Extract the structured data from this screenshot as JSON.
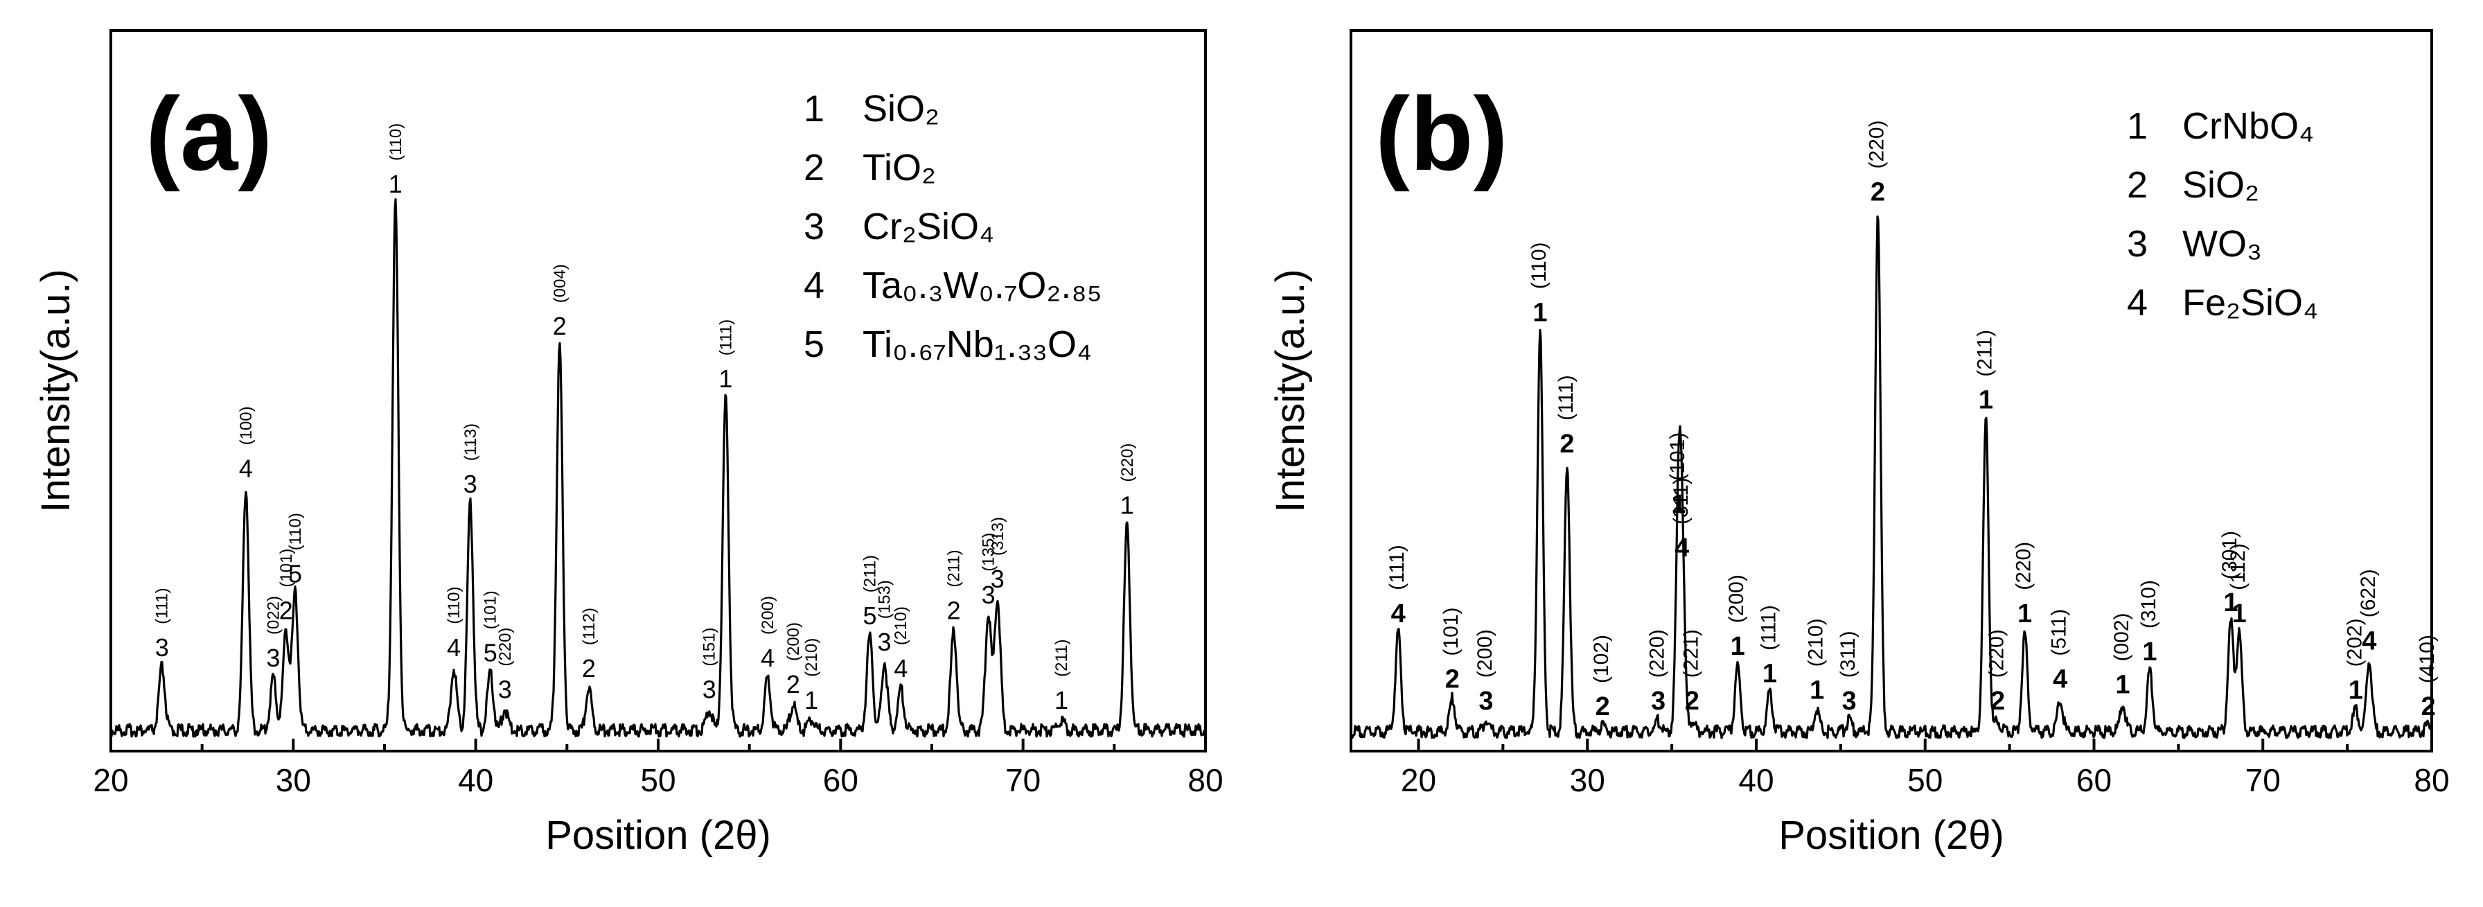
{
  "chart_data": [
    {
      "type": "line",
      "panel_label": "(a)",
      "xlabel": "Position (2θ)",
      "ylabel": "Intensity(a.u.)",
      "xlim": [
        20,
        80
      ],
      "ylim": [
        0,
        1
      ],
      "xticks": [
        20,
        30,
        40,
        50,
        60,
        70,
        80
      ],
      "xtick_labels": [
        "20",
        "30",
        "40",
        "50",
        "60",
        "70",
        "80"
      ],
      "legend": [
        {
          "num": "1",
          "phase": "SiO₂"
        },
        {
          "num": "2",
          "phase": "TiO₂"
        },
        {
          "num": "3",
          "phase": "Cr₂SiO₄"
        },
        {
          "num": "4",
          "phase": "Ta₀.₃W₀.₇O₂.₈₅"
        },
        {
          "num": "5",
          "phase": "Ti₀.₆₇Nb₁.₃₃O₄"
        }
      ],
      "peaks": [
        {
          "x": 22.8,
          "y": 0.12,
          "label": "3",
          "hkl": "(111)"
        },
        {
          "x": 27.4,
          "y": 0.46,
          "label": "4",
          "hkl": "(100)"
        },
        {
          "x": 28.9,
          "y": 0.1,
          "label": "3",
          "hkl": "(022)"
        },
        {
          "x": 29.6,
          "y": 0.19,
          "label": "2",
          "hkl": "(101)"
        },
        {
          "x": 30.1,
          "y": 0.26,
          "label": "5",
          "hkl": "(110)"
        },
        {
          "x": 35.6,
          "y": 1.0,
          "label": "1",
          "hkl": "(110)"
        },
        {
          "x": 38.8,
          "y": 0.12,
          "label": "4",
          "hkl": "(110)"
        },
        {
          "x": 39.7,
          "y": 0.43,
          "label": "3",
          "hkl": "(113)"
        },
        {
          "x": 40.8,
          "y": 0.11,
          "label": "5",
          "hkl": "(101)"
        },
        {
          "x": 41.6,
          "y": 0.04,
          "label": "3",
          "hkl": "(220)"
        },
        {
          "x": 44.6,
          "y": 0.73,
          "label": "2",
          "hkl": "(004)"
        },
        {
          "x": 46.2,
          "y": 0.08,
          "label": "2",
          "hkl": "(112)"
        },
        {
          "x": 52.8,
          "y": 0.04,
          "label": "3",
          "hkl": "(151)"
        },
        {
          "x": 53.7,
          "y": 0.63,
          "label": "1",
          "hkl": "(111)"
        },
        {
          "x": 56.0,
          "y": 0.1,
          "label": "4",
          "hkl": "(200)"
        },
        {
          "x": 57.4,
          "y": 0.05,
          "label": "2",
          "hkl": "(200)"
        },
        {
          "x": 58.4,
          "y": 0.02,
          "label": "1",
          "hkl": "(210)"
        },
        {
          "x": 61.6,
          "y": 0.18,
          "label": "5",
          "hkl": "(211)"
        },
        {
          "x": 62.4,
          "y": 0.13,
          "label": "3",
          "hkl": "(153)"
        },
        {
          "x": 63.3,
          "y": 0.08,
          "label": "4",
          "hkl": "(210)"
        },
        {
          "x": 66.2,
          "y": 0.19,
          "label": "2",
          "hkl": "(211)"
        },
        {
          "x": 68.1,
          "y": 0.22,
          "label": "3",
          "hkl": "(135)"
        },
        {
          "x": 68.6,
          "y": 0.25,
          "label": "3",
          "hkl": "(313)"
        },
        {
          "x": 72.1,
          "y": 0.02,
          "label": "1",
          "hkl": "(211)"
        },
        {
          "x": 75.7,
          "y": 0.39,
          "label": "1",
          "hkl": "(220)"
        }
      ]
    },
    {
      "type": "line",
      "panel_label": "(b)",
      "xlabel": "Position (2θ)",
      "ylabel": "Intensity(a.u.)",
      "xlim": [
        16,
        80
      ],
      "ylim": [
        0,
        1
      ],
      "xticks": [
        20,
        30,
        40,
        50,
        60,
        70,
        80
      ],
      "xtick_labels": [
        "20",
        "30",
        "40",
        "50",
        "60",
        "70",
        "80"
      ],
      "legend": [
        {
          "num": "1",
          "phase": "CrNbO₄"
        },
        {
          "num": "2",
          "phase": "SiO₂"
        },
        {
          "num": "3",
          "phase": "WO₃"
        },
        {
          "num": "4",
          "phase": "Fe₂SiO₄"
        }
      ],
      "peaks": [
        {
          "x": 18.8,
          "y": 0.18,
          "label": "4",
          "hkl": "(111)"
        },
        {
          "x": 22.0,
          "y": 0.06,
          "label": "2",
          "hkl": "(101)"
        },
        {
          "x": 24.0,
          "y": 0.02,
          "label": "3",
          "hkl": "(200)"
        },
        {
          "x": 27.2,
          "y": 0.73,
          "label": "1",
          "hkl": "(110)"
        },
        {
          "x": 28.8,
          "y": 0.49,
          "label": "2",
          "hkl": "(111)"
        },
        {
          "x": 30.9,
          "y": 0.01,
          "label": "2",
          "hkl": "(102)"
        },
        {
          "x": 34.2,
          "y": 0.02,
          "label": "3",
          "hkl": "(220)"
        },
        {
          "x": 35.4,
          "y": 0.38,
          "label": "1",
          "hkl": "(101)"
        },
        {
          "x": 35.6,
          "y": 0.3,
          "label": "4",
          "hkl": "(311)"
        },
        {
          "x": 36.2,
          "y": 0.02,
          "label": "2",
          "hkl": "(221)"
        },
        {
          "x": 38.9,
          "y": 0.12,
          "label": "1",
          "hkl": "(200)"
        },
        {
          "x": 40.8,
          "y": 0.07,
          "label": "1",
          "hkl": "(111)"
        },
        {
          "x": 43.6,
          "y": 0.04,
          "label": "1",
          "hkl": "(210)"
        },
        {
          "x": 45.5,
          "y": 0.02,
          "label": "3",
          "hkl": "(311)"
        },
        {
          "x": 47.2,
          "y": 0.95,
          "label": "2",
          "hkl": "(220)"
        },
        {
          "x": 53.6,
          "y": 0.57,
          "label": "1",
          "hkl": "(211)"
        },
        {
          "x": 54.3,
          "y": 0.02,
          "label": "2",
          "hkl": "(220)"
        },
        {
          "x": 55.9,
          "y": 0.18,
          "label": "1",
          "hkl": "(220)"
        },
        {
          "x": 58.0,
          "y": 0.06,
          "label": "4",
          "hkl": "(511)"
        },
        {
          "x": 61.7,
          "y": 0.05,
          "label": "1",
          "hkl": "(002)"
        },
        {
          "x": 63.3,
          "y": 0.11,
          "label": "1",
          "hkl": "(310)"
        },
        {
          "x": 68.1,
          "y": 0.2,
          "label": "1",
          "hkl": "(301)"
        },
        {
          "x": 68.6,
          "y": 0.18,
          "label": "1",
          "hkl": "(112)"
        },
        {
          "x": 75.5,
          "y": 0.04,
          "label": "1",
          "hkl": "(202)"
        },
        {
          "x": 76.3,
          "y": 0.13,
          "label": "4",
          "hkl": "(622)"
        },
        {
          "x": 79.8,
          "y": 0.01,
          "label": "2",
          "hkl": "(410)"
        }
      ]
    }
  ]
}
